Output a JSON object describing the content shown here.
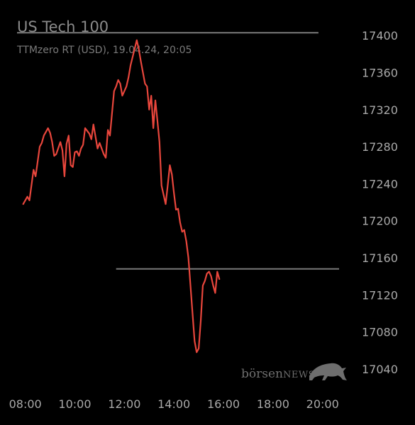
{
  "header": {
    "title": "US Tech 100",
    "subtitle": "TTMzero RT (USD), 19.04.24, 20:05"
  },
  "watermark": {
    "name_part1": "börsen",
    "name_part2": "NEWS",
    "logo_icon": "bull-icon"
  },
  "colors": {
    "line": "#e8463c",
    "reference_lines": "#7a7a7a",
    "background": "#000000"
  },
  "chart_data": {
    "type": "line",
    "title": "US Tech 100",
    "subtitle": "TTMzero RT (USD), 19.04.24, 20:05",
    "y_axis_position": "right",
    "ylim": [
      17020,
      17420
    ],
    "yticks": [
      17400,
      17360,
      17320,
      17280,
      17240,
      17200,
      17160,
      17120,
      17080,
      17040
    ],
    "xlim": [
      "07:40",
      "20:40"
    ],
    "xticks": [
      "08:00",
      "10:00",
      "12:00",
      "14:00",
      "16:00",
      "18:00",
      "20:00"
    ],
    "grid": false,
    "reference_lines": [
      {
        "from": "07:40",
        "to": "19:50",
        "value": 17403
      },
      {
        "from": "11:40",
        "to": "20:40",
        "value": 17148
      }
    ],
    "series": [
      {
        "points": [
          [
            "07:55",
            17218
          ],
          [
            "08:05",
            17226
          ],
          [
            "08:10",
            17222
          ],
          [
            "08:20",
            17255
          ],
          [
            "08:25",
            17248
          ],
          [
            "08:35",
            17280
          ],
          [
            "08:40",
            17284
          ],
          [
            "08:45",
            17292
          ],
          [
            "08:55",
            17300
          ],
          [
            "09:00",
            17295
          ],
          [
            "09:05",
            17285
          ],
          [
            "09:10",
            17270
          ],
          [
            "09:15",
            17272
          ],
          [
            "09:25",
            17285
          ],
          [
            "09:30",
            17276
          ],
          [
            "09:35",
            17248
          ],
          [
            "09:40",
            17283
          ],
          [
            "09:45",
            17292
          ],
          [
            "09:50",
            17260
          ],
          [
            "09:55",
            17258
          ],
          [
            "10:00",
            17274
          ],
          [
            "10:05",
            17275
          ],
          [
            "10:10",
            17270
          ],
          [
            "10:15",
            17278
          ],
          [
            "10:20",
            17282
          ],
          [
            "10:25",
            17300
          ],
          [
            "10:35",
            17294
          ],
          [
            "10:40",
            17288
          ],
          [
            "10:45",
            17304
          ],
          [
            "10:55",
            17278
          ],
          [
            "11:00",
            17284
          ],
          [
            "11:10",
            17272
          ],
          [
            "11:15",
            17268
          ],
          [
            "11:20",
            17298
          ],
          [
            "11:25",
            17292
          ],
          [
            "11:35",
            17340
          ],
          [
            "11:40",
            17345
          ],
          [
            "11:45",
            17352
          ],
          [
            "11:50",
            17348
          ],
          [
            "11:55",
            17335
          ],
          [
            "12:05",
            17345
          ],
          [
            "12:10",
            17355
          ],
          [
            "12:15",
            17368
          ],
          [
            "12:25",
            17386
          ],
          [
            "12:30",
            17395
          ],
          [
            "12:35",
            17385
          ],
          [
            "12:40",
            17372
          ],
          [
            "12:45",
            17360
          ],
          [
            "12:50",
            17348
          ],
          [
            "12:55",
            17345
          ],
          [
            "13:00",
            17320
          ],
          [
            "13:05",
            17335
          ],
          [
            "13:10",
            17300
          ],
          [
            "13:15",
            17330
          ],
          [
            "13:20",
            17308
          ],
          [
            "13:25",
            17285
          ],
          [
            "13:30",
            17238
          ],
          [
            "13:40",
            17218
          ],
          [
            "13:45",
            17238
          ],
          [
            "13:50",
            17260
          ],
          [
            "13:55",
            17250
          ],
          [
            "14:00",
            17230
          ],
          [
            "14:05",
            17212
          ],
          [
            "14:10",
            17213
          ],
          [
            "14:15",
            17198
          ],
          [
            "14:20",
            17188
          ],
          [
            "14:25",
            17190
          ],
          [
            "14:30",
            17178
          ],
          [
            "14:35",
            17160
          ],
          [
            "14:40",
            17130
          ],
          [
            "14:45",
            17100
          ],
          [
            "14:50",
            17070
          ],
          [
            "14:55",
            17058
          ],
          [
            "15:00",
            17062
          ],
          [
            "15:05",
            17092
          ],
          [
            "15:10",
            17130
          ],
          [
            "15:15",
            17135
          ],
          [
            "15:20",
            17143
          ],
          [
            "15:25",
            17145
          ],
          [
            "15:30",
            17140
          ],
          [
            "15:35",
            17130
          ],
          [
            "15:40",
            17122
          ],
          [
            "15:45",
            17145
          ],
          [
            "15:50",
            17137
          ]
        ]
      }
    ]
  }
}
